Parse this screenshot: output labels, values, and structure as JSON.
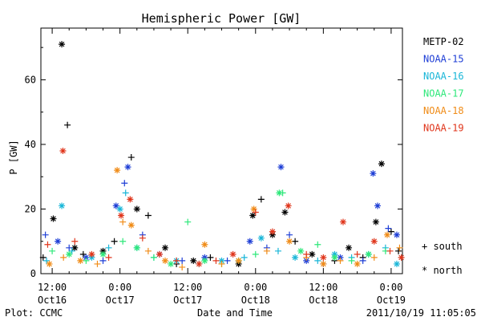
{
  "chart_data": {
    "type": "scatter",
    "title": "Hemispheric Power [GW]",
    "ylabel": "P [GW]",
    "xlabel": "Date and Time",
    "ylim": [
      0,
      76
    ],
    "xlim": [
      -2,
      62
    ],
    "yticks": [
      0,
      20,
      40,
      60
    ],
    "xticks": [
      {
        "t": 0,
        "label": "12:00",
        "sub": "Oct16"
      },
      {
        "t": 12,
        "label": "0:00",
        "sub": "Oct17"
      },
      {
        "t": 24,
        "label": "12:00",
        "sub": "Oct17"
      },
      {
        "t": 36,
        "label": "0:00",
        "sub": "Oct18"
      },
      {
        "t": 48,
        "label": "12:00",
        "sub": "Oct18"
      },
      {
        "t": 60,
        "label": "0:00",
        "sub": "Oct19"
      }
    ],
    "x_unit_note": "hours since 2011-10-16 12:00",
    "marker_legend": [
      {
        "symbol": "+",
        "label": "south"
      },
      {
        "symbol": "*",
        "label": "north"
      }
    ],
    "series": [
      {
        "name": "METP-02",
        "color": "#000000",
        "points": [
          [
            -1.6,
            5,
            "+"
          ],
          [
            0.2,
            17,
            "*"
          ],
          [
            1.7,
            71,
            "*"
          ],
          [
            2.7,
            46,
            "+"
          ],
          [
            4,
            8,
            "*"
          ],
          [
            5.5,
            6,
            "+"
          ],
          [
            9,
            7,
            "*"
          ],
          [
            11,
            10,
            "+"
          ],
          [
            14,
            36,
            "+"
          ],
          [
            15,
            20,
            "*"
          ],
          [
            17,
            18,
            "+"
          ],
          [
            20,
            8,
            "*"
          ],
          [
            22,
            3,
            "+"
          ],
          [
            25,
            4,
            "*"
          ],
          [
            28,
            5,
            "+"
          ],
          [
            33,
            3,
            "*"
          ],
          [
            35.5,
            18,
            "*"
          ],
          [
            37,
            23,
            "+"
          ],
          [
            39,
            12,
            "*"
          ],
          [
            41.2,
            19,
            "*"
          ],
          [
            43,
            10,
            "+"
          ],
          [
            46,
            6,
            "*"
          ],
          [
            50,
            4,
            "+"
          ],
          [
            52.5,
            8,
            "*"
          ],
          [
            55,
            5,
            "+"
          ],
          [
            57.3,
            16,
            "*"
          ],
          [
            58.3,
            34,
            "*"
          ],
          [
            60,
            13,
            "+"
          ],
          [
            61.3,
            7,
            "+"
          ]
        ]
      },
      {
        "name": "NOAA-15",
        "color": "#1f3fd6",
        "points": [
          [
            -1.2,
            12,
            "+"
          ],
          [
            1,
            10,
            "*"
          ],
          [
            3,
            8,
            "+"
          ],
          [
            6,
            5,
            "*"
          ],
          [
            9,
            4,
            "+"
          ],
          [
            11.3,
            21,
            "*"
          ],
          [
            12.8,
            28,
            "+"
          ],
          [
            13.4,
            33,
            "*"
          ],
          [
            16,
            12,
            "+"
          ],
          [
            19,
            6,
            "*"
          ],
          [
            23,
            4,
            "+"
          ],
          [
            27,
            5,
            "*"
          ],
          [
            31,
            4,
            "+"
          ],
          [
            35,
            10,
            "*"
          ],
          [
            38,
            8,
            "+"
          ],
          [
            40.5,
            33,
            "*"
          ],
          [
            42,
            12,
            "+"
          ],
          [
            45,
            4,
            "*"
          ],
          [
            48,
            3,
            "+"
          ],
          [
            51,
            5,
            "*"
          ],
          [
            55,
            4,
            "+"
          ],
          [
            56.8,
            31,
            "*"
          ],
          [
            57.6,
            21,
            "*"
          ],
          [
            59.5,
            14,
            "+"
          ],
          [
            61,
            12,
            "*"
          ]
        ]
      },
      {
        "name": "NOAA-16",
        "color": "#19b6d8",
        "points": [
          [
            -1,
            4,
            "+"
          ],
          [
            1.7,
            21,
            "*"
          ],
          [
            3.5,
            7,
            "+"
          ],
          [
            7,
            5,
            "*"
          ],
          [
            10,
            8,
            "+"
          ],
          [
            12,
            20,
            "*"
          ],
          [
            13,
            25,
            "+"
          ],
          [
            15,
            8,
            "*"
          ],
          [
            18,
            5,
            "+"
          ],
          [
            22,
            4,
            "*"
          ],
          [
            26,
            3,
            "+"
          ],
          [
            30,
            4,
            "*"
          ],
          [
            34,
            5,
            "+"
          ],
          [
            37,
            11,
            "*"
          ],
          [
            40,
            7,
            "+"
          ],
          [
            43,
            5,
            "*"
          ],
          [
            47,
            4,
            "+"
          ],
          [
            50,
            6,
            "*"
          ],
          [
            53,
            5,
            "+"
          ],
          [
            56,
            6,
            "*"
          ],
          [
            59,
            8,
            "+"
          ],
          [
            61,
            3,
            "*"
          ]
        ]
      },
      {
        "name": "NOAA-17",
        "color": "#2ee87a",
        "points": [
          [
            0,
            7,
            "+"
          ],
          [
            3,
            6,
            "*"
          ],
          [
            6,
            4,
            "+"
          ],
          [
            9,
            6,
            "*"
          ],
          [
            12.5,
            10,
            "+"
          ],
          [
            15,
            8,
            "*"
          ],
          [
            18,
            5,
            "+"
          ],
          [
            21,
            3,
            "*"
          ],
          [
            24,
            16,
            "+"
          ],
          [
            27,
            4,
            "*"
          ],
          [
            30,
            3,
            "+"
          ],
          [
            33,
            4,
            "*"
          ],
          [
            36,
            6,
            "+"
          ],
          [
            40.2,
            25,
            "*"
          ],
          [
            40.8,
            25,
            "+"
          ],
          [
            44,
            7,
            "*"
          ],
          [
            47,
            9,
            "+"
          ],
          [
            50,
            5,
            "*"
          ],
          [
            53,
            4,
            "+"
          ],
          [
            56,
            6,
            "*"
          ],
          [
            59,
            7,
            "+"
          ]
        ]
      },
      {
        "name": "NOAA-18",
        "color": "#f08c18",
        "points": [
          [
            -0.5,
            3,
            "*"
          ],
          [
            2,
            5,
            "+"
          ],
          [
            5,
            4,
            "*"
          ],
          [
            8,
            3,
            "+"
          ],
          [
            11.5,
            32,
            "*"
          ],
          [
            12.5,
            16,
            "+"
          ],
          [
            14,
            15,
            "*"
          ],
          [
            17,
            7,
            "+"
          ],
          [
            20,
            4,
            "*"
          ],
          [
            23,
            2,
            "+"
          ],
          [
            27,
            9,
            "*"
          ],
          [
            30,
            3,
            "+"
          ],
          [
            33,
            4,
            "*"
          ],
          [
            35.7,
            20,
            "*"
          ],
          [
            38,
            7,
            "+"
          ],
          [
            42,
            10,
            "*"
          ],
          [
            45,
            5,
            "+"
          ],
          [
            48,
            3,
            "*"
          ],
          [
            51,
            4,
            "+"
          ],
          [
            54,
            3,
            "*"
          ],
          [
            57,
            5,
            "+"
          ],
          [
            59.3,
            12,
            "*"
          ],
          [
            61.5,
            8,
            "+"
          ]
        ]
      },
      {
        "name": "NOAA-19",
        "color": "#e0361c",
        "points": [
          [
            -0.8,
            9,
            "+"
          ],
          [
            1.9,
            38,
            "*"
          ],
          [
            4,
            10,
            "+"
          ],
          [
            7,
            6,
            "*"
          ],
          [
            10,
            5,
            "+"
          ],
          [
            12.2,
            18,
            "*"
          ],
          [
            13.8,
            23,
            "*"
          ],
          [
            16,
            11,
            "+"
          ],
          [
            19,
            6,
            "*"
          ],
          [
            22,
            4,
            "+"
          ],
          [
            26,
            3,
            "*"
          ],
          [
            29,
            4,
            "+"
          ],
          [
            32,
            6,
            "*"
          ],
          [
            36,
            19,
            "+"
          ],
          [
            39,
            13,
            "*"
          ],
          [
            41.8,
            21,
            "*"
          ],
          [
            45,
            6,
            "+"
          ],
          [
            48,
            5,
            "*"
          ],
          [
            51.5,
            16,
            "*"
          ],
          [
            54,
            6,
            "+"
          ],
          [
            57,
            10,
            "*"
          ],
          [
            59.8,
            7,
            "+"
          ],
          [
            61.8,
            5,
            "*"
          ]
        ]
      }
    ]
  },
  "footer": {
    "left": "Plot: CCMC",
    "right": "2011/10/19 11:05:05"
  }
}
